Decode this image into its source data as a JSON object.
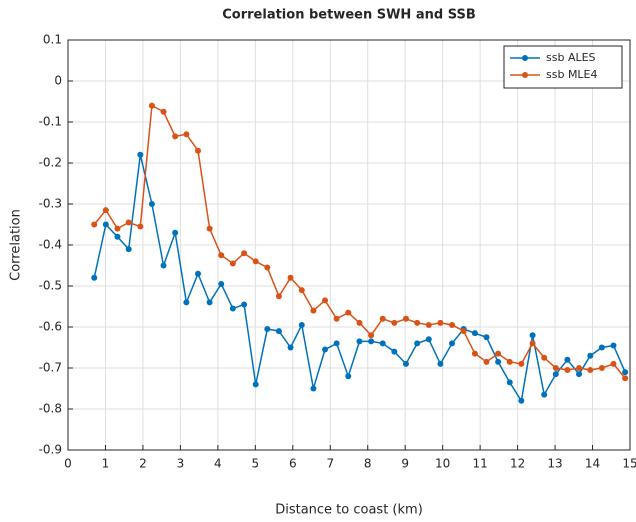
{
  "chart_data": {
    "type": "line",
    "title": "Correlation between SWH and SSB",
    "x_label": "Distance to coast (km)",
    "y_label": "Correlation",
    "x": [
      0.7,
      1.01,
      1.32,
      1.62,
      1.93,
      2.24,
      2.55,
      2.86,
      3.16,
      3.47,
      3.78,
      4.09,
      4.4,
      4.7,
      5.01,
      5.32,
      5.63,
      5.94,
      6.24,
      6.55,
      6.86,
      7.17,
      7.48,
      7.78,
      8.09,
      8.4,
      8.71,
      9.02,
      9.32,
      9.63,
      9.94,
      10.25,
      10.56,
      10.86,
      11.17,
      11.48,
      11.79,
      12.1,
      12.4,
      12.71,
      13.02,
      13.33,
      13.64,
      13.94,
      14.25,
      14.56,
      14.87
    ],
    "series": [
      {
        "name": "ssb ALES",
        "color": "#0072bd",
        "values": [
          -0.48,
          -0.35,
          -0.38,
          -0.41,
          -0.18,
          -0.3,
          -0.45,
          -0.37,
          -0.54,
          -0.47,
          -0.54,
          -0.495,
          -0.555,
          -0.545,
          -0.74,
          -0.605,
          -0.61,
          -0.65,
          -0.595,
          -0.75,
          -0.655,
          -0.64,
          -0.72,
          -0.635,
          -0.635,
          -0.64,
          -0.66,
          -0.69,
          -0.64,
          -0.63,
          -0.69,
          -0.64,
          -0.605,
          -0.615,
          -0.625,
          -0.685,
          -0.735,
          -0.78,
          -0.62,
          -0.765,
          -0.715,
          -0.68,
          -0.715,
          -0.67,
          -0.65,
          -0.645,
          -0.71
        ]
      },
      {
        "name": "ssb MLE4",
        "color": "#d95319",
        "values": [
          -0.35,
          -0.315,
          -0.36,
          -0.345,
          -0.355,
          -0.06,
          -0.075,
          -0.135,
          -0.13,
          -0.17,
          -0.36,
          -0.425,
          -0.445,
          -0.42,
          -0.44,
          -0.455,
          -0.525,
          -0.48,
          -0.51,
          -0.56,
          -0.535,
          -0.58,
          -0.565,
          -0.59,
          -0.62,
          -0.58,
          -0.59,
          -0.58,
          -0.59,
          -0.595,
          -0.59,
          -0.595,
          -0.61,
          -0.665,
          -0.685,
          -0.665,
          -0.685,
          -0.69,
          -0.64,
          -0.675,
          -0.7,
          -0.705,
          -0.7,
          -0.705,
          -0.7,
          -0.69,
          -0.725
        ]
      }
    ],
    "xlim": [
      0,
      15
    ],
    "xticks": [
      0,
      1,
      2,
      3,
      4,
      5,
      6,
      7,
      8,
      9,
      10,
      11,
      12,
      13,
      14,
      15
    ],
    "ylim": [
      -0.9,
      0.1
    ],
    "yticks": [
      -0.9,
      -0.8,
      -0.7,
      -0.6,
      -0.5,
      -0.4,
      -0.3,
      -0.2,
      -0.1,
      0,
      0.1
    ],
    "grid": true,
    "legend": "top-right"
  }
}
